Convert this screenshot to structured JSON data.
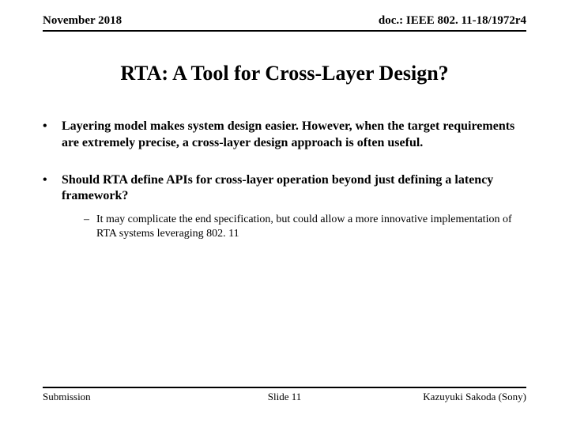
{
  "header": {
    "date": "November 2018",
    "docid": "doc.: IEEE 802. 11-18/1972r4"
  },
  "title": "RTA: A Tool for Cross-Layer Design?",
  "bullets": [
    {
      "text": "Layering model makes system design easier. However, when the target requirements are extremely precise, a cross-layer design approach is often useful."
    },
    {
      "text": "Should RTA define APIs for cross-layer operation beyond just defining a latency framework?",
      "sub": "It may complicate the end specification, but could allow a more innovative implementation of RTA systems leveraging 802. 11"
    }
  ],
  "footer": {
    "left": "Submission",
    "center": "Slide 11",
    "right": "Kazuyuki Sakoda (Sony)"
  },
  "markers": {
    "bullet": "•",
    "dash": "–"
  }
}
